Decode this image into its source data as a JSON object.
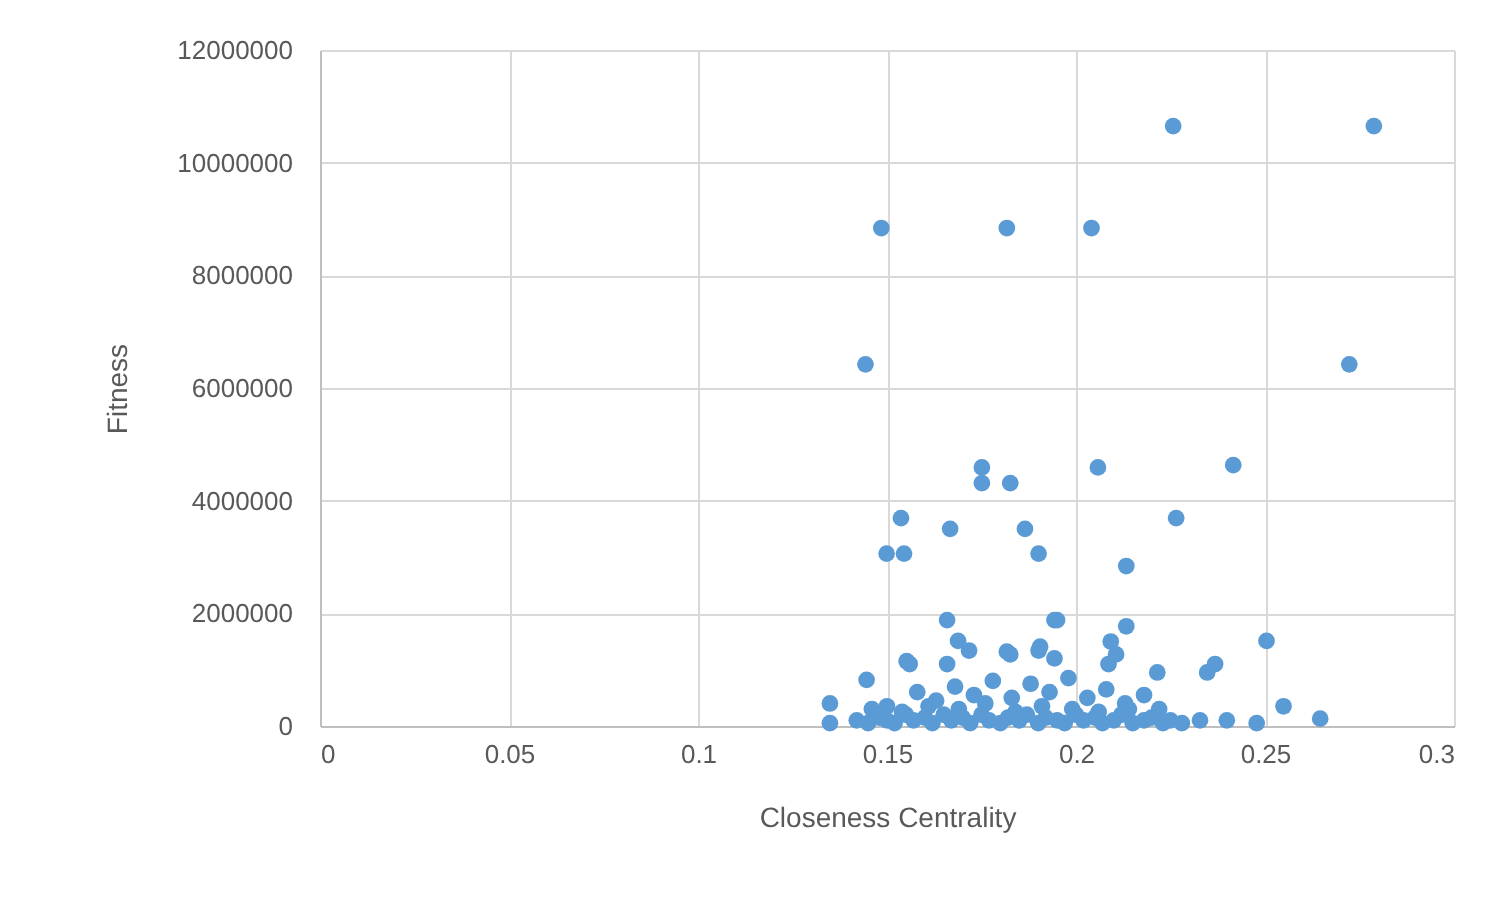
{
  "chart_data": {
    "type": "scatter",
    "xlabel": "Closeness Centrality",
    "ylabel": "Fitness",
    "xlim": [
      0,
      0.3
    ],
    "xticks": [
      0,
      0.05,
      0.1,
      0.15,
      0.2,
      0.25,
      0.3
    ],
    "ylim": [
      0,
      12000000
    ],
    "yticks": [
      0,
      2000000,
      4000000,
      6000000,
      8000000,
      10000000,
      12000000
    ],
    "grid": true,
    "marker": "circle",
    "series": [
      {
        "color": "#5b9bd5",
        "x": [
          0.2257,
          0.2788,
          0.1485,
          0.1817,
          0.2041,
          0.1443,
          0.2723,
          0.1751,
          0.1751,
          0.1826,
          0.2058,
          0.2416,
          0.1537,
          0.1667,
          0.1865,
          0.2265,
          0.1499,
          0.1545,
          0.1901,
          0.2133,
          0.1659,
          0.1943,
          0.195,
          0.2133,
          0.2504,
          0.1688,
          0.1717,
          0.1826,
          0.1901,
          0.1943,
          0.2092,
          0.2106,
          0.156,
          0.1659,
          0.2086,
          0.2215,
          0.2368,
          0.2347,
          0.2646,
          0.2549,
          0.2478,
          0.2399,
          0.2328,
          0.1446,
          0.1552,
          0.1817,
          0.1905,
          0.1349,
          0.1349,
          0.142,
          0.145,
          0.148,
          0.15,
          0.152,
          0.155,
          0.157,
          0.16,
          0.162,
          0.165,
          0.167,
          0.17,
          0.172,
          0.175,
          0.177,
          0.18,
          0.182,
          0.185,
          0.187,
          0.19,
          0.192,
          0.195,
          0.197,
          0.2,
          0.202,
          0.205,
          0.207,
          0.21,
          0.212,
          0.215,
          0.218,
          0.22,
          0.223,
          0.225,
          0.228,
          0.15,
          0.158,
          0.163,
          0.168,
          0.173,
          0.178,
          0.183,
          0.188,
          0.193,
          0.198,
          0.203,
          0.208,
          0.213,
          0.218,
          0.222,
          0.146,
          0.154,
          0.161,
          0.169,
          0.176,
          0.184,
          0.191,
          0.199,
          0.206,
          0.214
        ],
        "values": [
          10650000,
          10650000,
          8840000,
          8840000,
          8840000,
          6420000,
          6420000,
          4590000,
          4310000,
          4310000,
          4590000,
          4630000,
          3690000,
          3500000,
          3500000,
          3690000,
          3060000,
          3060000,
          3060000,
          2840000,
          1880000,
          1880000,
          1880000,
          1770000,
          1510000,
          1510000,
          1340000,
          1270000,
          1340000,
          1200000,
          1500000,
          1270000,
          1100000,
          1100000,
          1100000,
          950000,
          1100000,
          950000,
          130000,
          350000,
          50000,
          100000,
          100000,
          820000,
          1150000,
          1320000,
          1410000,
          400000,
          50000,
          100000,
          50000,
          150000,
          100000,
          50000,
          200000,
          100000,
          150000,
          50000,
          200000,
          100000,
          150000,
          50000,
          200000,
          100000,
          50000,
          150000,
          100000,
          200000,
          50000,
          150000,
          100000,
          50000,
          200000,
          100000,
          150000,
          50000,
          100000,
          200000,
          50000,
          100000,
          150000,
          50000,
          100000,
          50000,
          350000,
          600000,
          450000,
          700000,
          550000,
          800000,
          500000,
          750000,
          600000,
          850000,
          500000,
          650000,
          400000,
          550000,
          300000,
          300000,
          250000,
          350000,
          300000,
          400000,
          250000,
          350000,
          300000,
          250000,
          300000
        ]
      }
    ]
  }
}
